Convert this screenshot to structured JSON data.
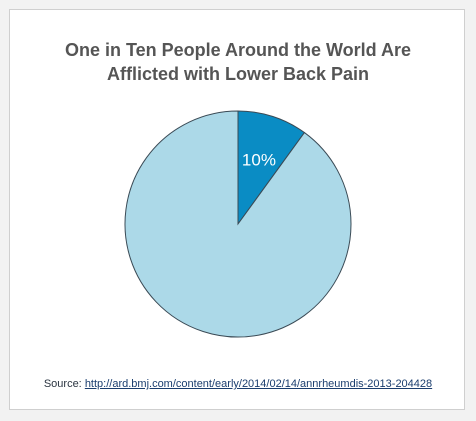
{
  "title": {
    "line1": "One in Ten People Around the World Are",
    "line2": "Afflicted with Lower Back Pain"
  },
  "chart_data": {
    "type": "pie",
    "title": "One in Ten People Around the World Are Afflicted with Lower Back Pain",
    "slices": [
      {
        "label": "10%",
        "value": 10,
        "color": "#0a8cc4"
      },
      {
        "label": "",
        "value": 90,
        "color": "#acd9e8"
      }
    ]
  },
  "source": {
    "prefix": "Source:",
    "link_text": "http://ard.bmj.com/content/early/2014/02/14/annrheumdis-2013-204428"
  },
  "colors": {
    "highlight_slice": "#0a8cc4",
    "rest_slice": "#acd9e8",
    "title_text": "#555555",
    "link": "#1a3d6e"
  }
}
